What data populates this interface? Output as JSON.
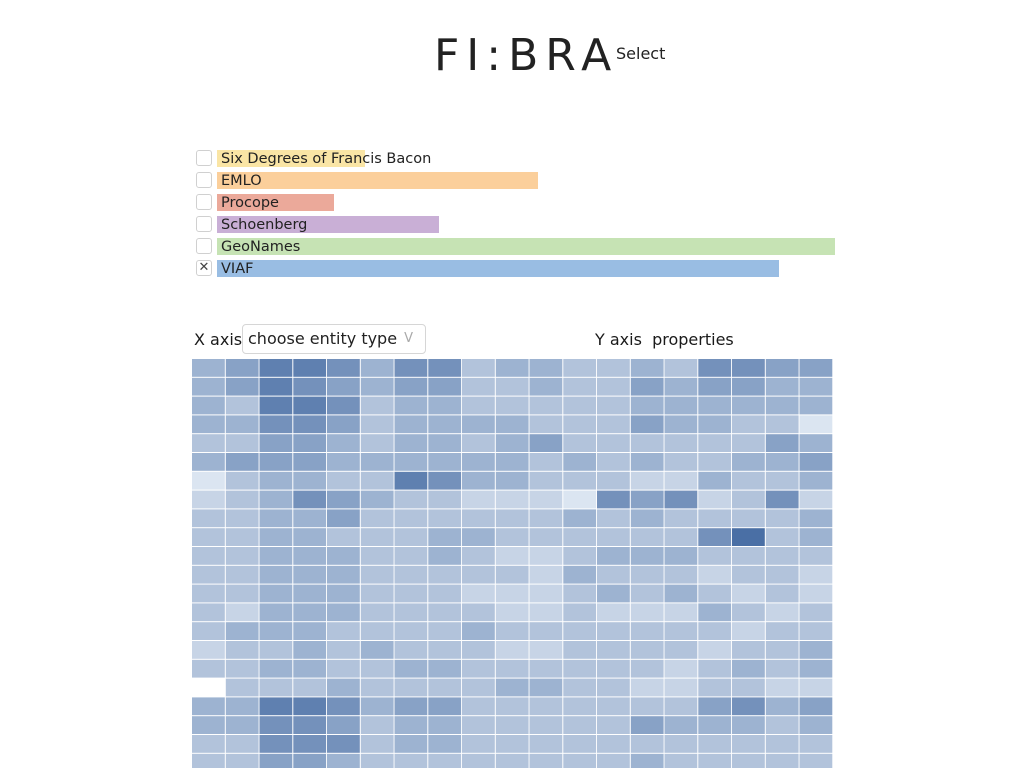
{
  "header": {
    "logo_text": "FI:BRA",
    "select_label": "Select"
  },
  "sources": [
    {
      "label": "Six Degrees of Francis Bacon",
      "checked": false,
      "fraction": 0.24,
      "color": "#fae5a5"
    },
    {
      "label": "EMLO",
      "checked": false,
      "fraction": 0.52,
      "color": "#fbcf9b"
    },
    {
      "label": "Procope",
      "checked": false,
      "fraction": 0.19,
      "color": "#eba99a"
    },
    {
      "label": "Schoenberg",
      "checked": false,
      "fraction": 0.36,
      "color": "#c9afd6"
    },
    {
      "label": "GeoNames",
      "checked": false,
      "fraction": 1.0,
      "color": "#c6e3b4"
    },
    {
      "label": "VIAF",
      "checked": true,
      "fraction": 0.91,
      "color": "#99bde3"
    }
  ],
  "axes": {
    "x_label": "X axis",
    "x_select_value": "choose entity type",
    "x_select_chevron": "V",
    "y_label": "Y axis",
    "y_value": "properties"
  },
  "heatmap": {
    "color_low": "#f0f6fc",
    "color_high": "#4a6fa5",
    "rows": [
      [
        4,
        5,
        7,
        7,
        6,
        4,
        6,
        6,
        3,
        4,
        4,
        3,
        3,
        4,
        3,
        6,
        6,
        5,
        5
      ],
      [
        4,
        5,
        7,
        6,
        5,
        4,
        5,
        5,
        3,
        3,
        4,
        3,
        3,
        5,
        4,
        5,
        5,
        4,
        4
      ],
      [
        4,
        3,
        7,
        7,
        6,
        3,
        4,
        4,
        3,
        3,
        3,
        3,
        3,
        4,
        4,
        4,
        4,
        4,
        4
      ],
      [
        4,
        4,
        6,
        6,
        5,
        3,
        4,
        4,
        4,
        4,
        3,
        3,
        3,
        5,
        4,
        4,
        3,
        3,
        1
      ],
      [
        3,
        3,
        5,
        5,
        4,
        3,
        4,
        4,
        3,
        4,
        5,
        3,
        3,
        3,
        3,
        3,
        3,
        5,
        4
      ],
      [
        4,
        5,
        5,
        5,
        4,
        4,
        4,
        4,
        4,
        4,
        3,
        4,
        3,
        4,
        3,
        3,
        4,
        4,
        5
      ],
      [
        1,
        3,
        4,
        4,
        3,
        3,
        7,
        6,
        4,
        4,
        3,
        3,
        3,
        2,
        2,
        4,
        3,
        3,
        4
      ],
      [
        2,
        3,
        4,
        6,
        5,
        4,
        3,
        3,
        2,
        2,
        2,
        1,
        6,
        5,
        6,
        2,
        3,
        6,
        2
      ],
      [
        3,
        3,
        4,
        4,
        5,
        3,
        3,
        3,
        3,
        3,
        3,
        4,
        3,
        4,
        3,
        3,
        3,
        3,
        4
      ],
      [
        3,
        3,
        4,
        4,
        3,
        3,
        3,
        4,
        4,
        3,
        3,
        3,
        3,
        3,
        3,
        6,
        8,
        3,
        4
      ],
      [
        3,
        3,
        4,
        4,
        4,
        3,
        3,
        4,
        3,
        2,
        2,
        3,
        4,
        4,
        4,
        3,
        3,
        3,
        3
      ],
      [
        3,
        3,
        4,
        4,
        4,
        3,
        3,
        3,
        3,
        3,
        2,
        4,
        3,
        3,
        3,
        2,
        3,
        3,
        2
      ],
      [
        3,
        3,
        4,
        4,
        4,
        3,
        3,
        3,
        2,
        2,
        2,
        3,
        4,
        3,
        4,
        3,
        2,
        3,
        2
      ],
      [
        3,
        2,
        4,
        4,
        4,
        3,
        3,
        3,
        3,
        2,
        2,
        3,
        2,
        2,
        2,
        4,
        3,
        2,
        3
      ],
      [
        3,
        4,
        4,
        4,
        3,
        3,
        3,
        3,
        4,
        3,
        3,
        3,
        3,
        3,
        3,
        3,
        2,
        3,
        3
      ],
      [
        2,
        3,
        3,
        4,
        3,
        4,
        3,
        3,
        3,
        2,
        2,
        3,
        3,
        3,
        3,
        2,
        3,
        3,
        4
      ],
      [
        3,
        3,
        4,
        4,
        3,
        3,
        4,
        4,
        3,
        3,
        3,
        3,
        3,
        3,
        2,
        3,
        4,
        3,
        4
      ],
      [
        0,
        3,
        3,
        3,
        4,
        3,
        3,
        3,
        3,
        4,
        4,
        3,
        3,
        2,
        2,
        3,
        3,
        2,
        2
      ],
      [
        4,
        4,
        7,
        7,
        6,
        4,
        5,
        5,
        3,
        3,
        3,
        3,
        3,
        3,
        3,
        5,
        6,
        4,
        5
      ],
      [
        4,
        4,
        6,
        6,
        5,
        3,
        4,
        4,
        3,
        3,
        3,
        3,
        3,
        5,
        4,
        4,
        4,
        3,
        4
      ],
      [
        3,
        3,
        6,
        6,
        6,
        3,
        4,
        4,
        3,
        3,
        3,
        3,
        3,
        3,
        3,
        3,
        3,
        3,
        3
      ],
      [
        3,
        3,
        5,
        5,
        4,
        3,
        3,
        3,
        3,
        3,
        3,
        3,
        3,
        4,
        3,
        3,
        3,
        3,
        3
      ]
    ]
  }
}
